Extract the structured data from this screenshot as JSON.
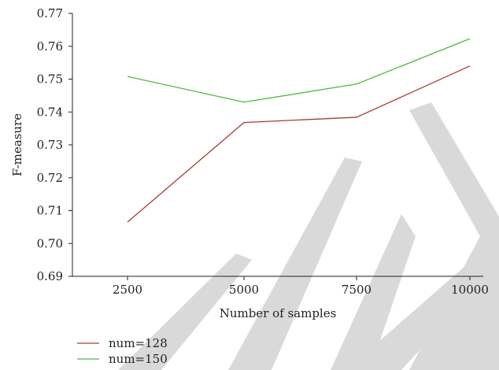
{
  "chart_data": {
    "type": "line",
    "title": "",
    "xlabel": "Number of samples",
    "ylabel": "F-measure",
    "x": [
      2500,
      5000,
      7500,
      10000
    ],
    "x_tick_labels": [
      "2500",
      "5000",
      "7500",
      "10000"
    ],
    "ylim": [
      0.69,
      0.77
    ],
    "y_ticks": [
      0.69,
      0.7,
      0.71,
      0.72,
      0.73,
      0.74,
      0.75,
      0.76,
      0.77
    ],
    "y_tick_labels": [
      "0.69",
      "0.70",
      "0.71",
      "0.72",
      "0.73",
      "0.74",
      "0.75",
      "0.76",
      "0.77"
    ],
    "grid": false,
    "legend_position": "bottom-left",
    "series": [
      {
        "name": "num=128",
        "color": "#a93c33",
        "values": [
          0.7065,
          0.7368,
          0.7384,
          0.754
        ]
      },
      {
        "name": "num=150",
        "color": "#52b848",
        "values": [
          0.7508,
          0.743,
          0.7485,
          0.7623
        ]
      }
    ]
  },
  "watermark": {
    "text": "RETRACTED",
    "color": "#d9d9d9"
  }
}
